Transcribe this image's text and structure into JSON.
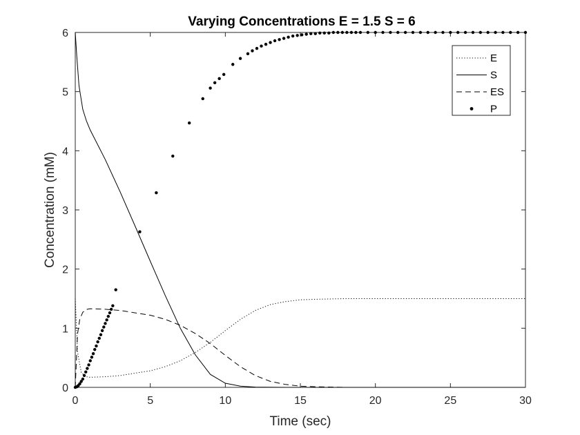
{
  "chart_data": {
    "type": "line",
    "title": "Varying Concentrations E = 1.5 S = 6",
    "xlabel": "Time (sec)",
    "ylabel": "Concentration (mM)",
    "xlim": [
      0,
      30
    ],
    "ylim": [
      0,
      6
    ],
    "xticks": [
      0,
      5,
      10,
      15,
      20,
      25,
      30
    ],
    "yticks": [
      0,
      1,
      2,
      3,
      4,
      5,
      6
    ],
    "grid": false,
    "legend_position": "top-right",
    "series": [
      {
        "name": "E",
        "style": "dotted",
        "color": "#000000",
        "x": [
          0,
          0.15,
          0.4,
          0.7,
          1,
          2,
          3,
          4,
          5,
          6,
          7,
          8,
          9,
          10,
          11,
          12,
          13,
          14,
          15,
          16,
          18,
          20,
          25,
          30
        ],
        "y": [
          1.5,
          0.6,
          0.25,
          0.18,
          0.17,
          0.18,
          0.2,
          0.24,
          0.28,
          0.35,
          0.45,
          0.59,
          0.76,
          0.96,
          1.15,
          1.3,
          1.4,
          1.45,
          1.48,
          1.49,
          1.5,
          1.5,
          1.5,
          1.5
        ]
      },
      {
        "name": "S",
        "style": "solid",
        "color": "#000000",
        "x": [
          0,
          0.1,
          0.25,
          0.5,
          0.75,
          1,
          2,
          3,
          4,
          5,
          6,
          7,
          8,
          9,
          10,
          11,
          12,
          14,
          16,
          20,
          30
        ],
        "y": [
          6,
          5.6,
          5.1,
          4.7,
          4.5,
          4.35,
          3.85,
          3.3,
          2.72,
          2.13,
          1.55,
          1.0,
          0.55,
          0.22,
          0.07,
          0.02,
          0.005,
          0,
          0,
          0,
          0
        ]
      },
      {
        "name": "ES",
        "style": "dashed",
        "color": "#000000",
        "x": [
          0,
          0.15,
          0.3,
          0.5,
          0.8,
          1,
          2,
          3,
          4,
          5,
          6,
          7,
          8,
          9,
          10,
          11,
          12,
          13,
          14,
          15,
          16,
          18,
          20,
          30
        ],
        "y": [
          0,
          0.9,
          1.15,
          1.27,
          1.32,
          1.33,
          1.32,
          1.3,
          1.26,
          1.22,
          1.15,
          1.05,
          0.91,
          0.74,
          0.54,
          0.35,
          0.2,
          0.1,
          0.05,
          0.02,
          0.01,
          0,
          0,
          0
        ]
      },
      {
        "name": "P",
        "style": "markers",
        "color": "#000000",
        "x": [
          0,
          0.1,
          0.2,
          0.3,
          0.4,
          0.5,
          0.6,
          0.7,
          0.8,
          0.9,
          1.0,
          1.1,
          1.2,
          1.3,
          1.4,
          1.5,
          1.6,
          1.7,
          1.8,
          1.9,
          2.0,
          2.1,
          2.2,
          2.3,
          2.4,
          2.5,
          2.7,
          4.3,
          5.4,
          6.5,
          7.6,
          8.5,
          9.0,
          9.3,
          9.6,
          9.9,
          10.5,
          11.0,
          11.5,
          11.8,
          12.1,
          12.4,
          12.7,
          13.0,
          13.3,
          13.6,
          13.9,
          14.2,
          14.5,
          14.8,
          15.1,
          15.4,
          15.7,
          16.0,
          16.3,
          16.6,
          16.9,
          17.2,
          17.5,
          17.8,
          18.1,
          18.4,
          18.7,
          19.0,
          19.5,
          20.0,
          20.5,
          21.0,
          21.5,
          22.0,
          22.5,
          23.0,
          23.5,
          24.0,
          24.5,
          25.0,
          25.5,
          26.0,
          26.5,
          27.0,
          27.5,
          28.0,
          28.5,
          29.0,
          29.5,
          30.0
        ],
        "y": [
          0,
          0.01,
          0.03,
          0.06,
          0.1,
          0.14,
          0.2,
          0.26,
          0.32,
          0.38,
          0.45,
          0.51,
          0.57,
          0.64,
          0.7,
          0.77,
          0.83,
          0.89,
          0.96,
          1.02,
          1.08,
          1.14,
          1.2,
          1.26,
          1.32,
          1.38,
          1.65,
          2.63,
          3.29,
          3.91,
          4.47,
          4.88,
          5.06,
          5.15,
          5.22,
          5.29,
          5.46,
          5.56,
          5.64,
          5.69,
          5.73,
          5.77,
          5.8,
          5.83,
          5.86,
          5.88,
          5.9,
          5.92,
          5.94,
          5.95,
          5.96,
          5.97,
          5.98,
          5.98,
          5.99,
          5.99,
          5.99,
          6.0,
          6.0,
          6.0,
          6.0,
          6.0,
          6.0,
          6.0,
          6.0,
          6.0,
          6.0,
          6.0,
          6.0,
          6.0,
          6.0,
          6.0,
          6.0,
          6.0,
          6.0,
          6.0,
          6.0,
          6.0,
          6.0,
          6.0,
          6.0,
          6.0,
          6.0,
          6.0,
          6.0,
          6.0
        ]
      }
    ]
  }
}
